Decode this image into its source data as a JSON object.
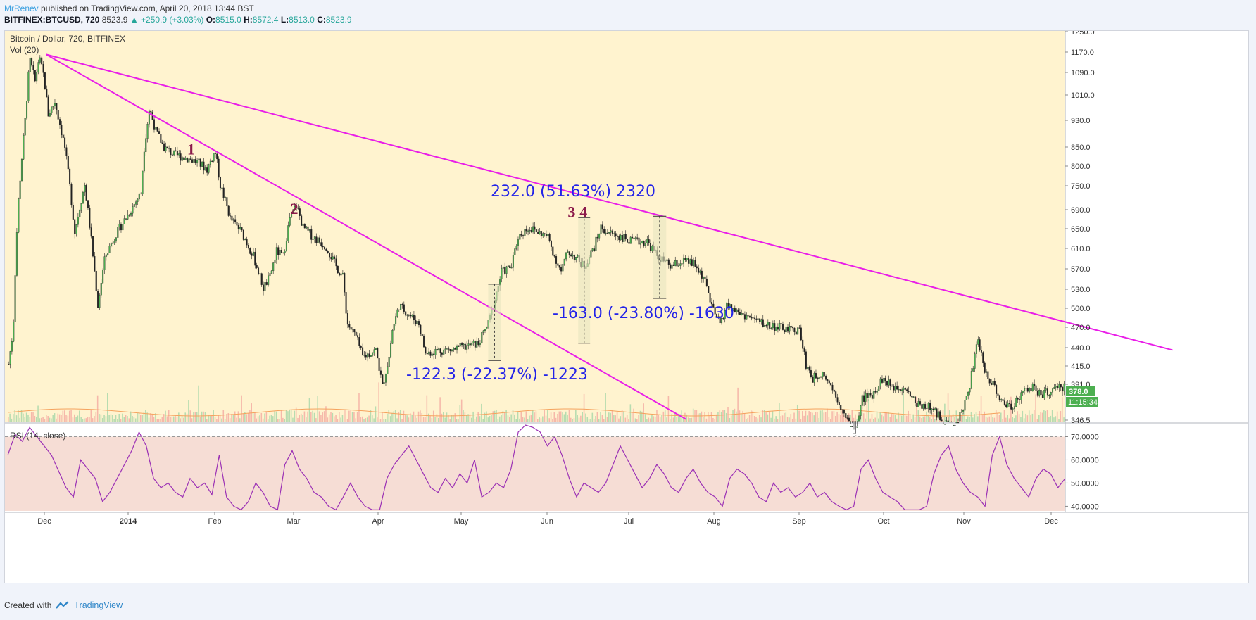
{
  "header": {
    "author": "MrRenev",
    "published": "published on TradingView.com, April 20, 2018 13:44 BST",
    "symbol": "BITFINEX:BTCUSD, 720",
    "last": "8523.9",
    "change": "▲ +250.9 (+3.03%)",
    "o_label": "O:",
    "o_value": "8515.0",
    "h_label": "H:",
    "h_value": "8572.4",
    "l_label": "L:",
    "l_value": "8513.0",
    "c_label": "C:",
    "c_value": "8523.9"
  },
  "footer": {
    "created_with": "Created with",
    "brand": "TradingView"
  },
  "colors": {
    "background": "#fff3cf",
    "rsi_band": "#f6ddd5",
    "trendline": "#e91ee8",
    "up": "#4caf50",
    "down": "#e05858",
    "rsi": "#9b30b5",
    "measure": "#2323e8",
    "wave": "#8b1a4a"
  },
  "chart_data": [
    {
      "type": "candlestick",
      "title": "Bitcoin / Dollar, 720, BITFINEX",
      "indicator": "Vol (20)",
      "x_ticks": [
        "Dec",
        "2014",
        "Feb",
        "Mar",
        "Apr",
        "May",
        "Jun",
        "Jul",
        "Aug",
        "Sep",
        "Oct",
        "Nov",
        "Dec"
      ],
      "y_ticks": [
        "1250.0",
        "1170.0",
        "1090.0",
        "1010.0",
        "930.0",
        "850.0",
        "800.0",
        "750.0",
        "690.0",
        "650.0",
        "610.0",
        "570.0",
        "530.0",
        "500.0",
        "470.0",
        "440.0",
        "415.0",
        "391.0",
        "346.5"
      ],
      "last_price_badge": "378.0",
      "countdown_badge": "11:15:34",
      "y_scale": "log",
      "close_path": [
        [
          0,
          420
        ],
        [
          0.7,
          470
        ],
        [
          1.4,
          700
        ],
        [
          2.5,
          940
        ],
        [
          3.2,
          1150
        ],
        [
          4.0,
          1070
        ],
        [
          4.6,
          1160
        ],
        [
          5.3,
          1090
        ],
        [
          6.0,
          960
        ],
        [
          7.0,
          1000
        ],
        [
          8.5,
          860
        ],
        [
          10.0,
          650
        ],
        [
          11.5,
          760
        ],
        [
          13.0,
          570
        ],
        [
          13.5,
          510
        ],
        [
          14.6,
          600
        ],
        [
          16.0,
          640
        ],
        [
          18.5,
          700
        ],
        [
          20.0,
          740
        ],
        [
          20.5,
          860
        ],
        [
          21.3,
          980
        ],
        [
          22.2,
          910
        ],
        [
          23.5,
          860
        ],
        [
          25.0,
          840
        ],
        [
          27.0,
          830
        ],
        [
          28.5,
          820
        ],
        [
          30.0,
          800
        ],
        [
          31.2,
          850
        ],
        [
          32.0,
          760
        ],
        [
          33.5,
          680
        ],
        [
          35.2,
          650
        ],
        [
          37.0,
          600
        ],
        [
          38.5,
          540
        ],
        [
          39.5,
          560
        ],
        [
          40.5,
          610
        ],
        [
          41.5,
          600
        ],
        [
          42.5,
          680
        ],
        [
          43.5,
          710
        ],
        [
          44.5,
          660
        ],
        [
          46.0,
          640
        ],
        [
          48.0,
          620
        ],
        [
          49.5,
          580
        ],
        [
          50.5,
          560
        ],
        [
          51.2,
          480
        ],
        [
          52.5,
          460
        ],
        [
          53.5,
          430
        ],
        [
          55.5,
          440
        ],
        [
          56.5,
          390
        ],
        [
          57.5,
          430
        ],
        [
          58.0,
          470
        ],
        [
          59.0,
          510
        ],
        [
          60.0,
          500
        ],
        [
          62.0,
          480
        ],
        [
          63.0,
          435
        ],
        [
          65.0,
          440
        ],
        [
          67.0,
          440
        ],
        [
          69.0,
          445
        ],
        [
          71.0,
          450
        ],
        [
          72.5,
          480
        ],
        [
          73.5,
          520
        ],
        [
          74.5,
          570
        ],
        [
          76.0,
          580
        ],
        [
          77.0,
          640
        ],
        [
          78.5,
          660
        ],
        [
          80.0,
          650
        ],
        [
          81.5,
          640
        ],
        [
          82.5,
          600
        ],
        [
          83.5,
          570
        ],
        [
          84.5,
          610
        ],
        [
          85.5,
          600
        ],
        [
          87.0,
          580
        ],
        [
          88.5,
          620
        ],
        [
          89.5,
          660
        ],
        [
          90.5,
          650
        ],
        [
          92.5,
          640
        ],
        [
          94.0,
          630
        ],
        [
          96.5,
          630
        ],
        [
          98.0,
          600
        ],
        [
          100.0,
          580
        ],
        [
          102.0,
          590
        ],
        [
          103.5,
          585
        ],
        [
          105.0,
          560
        ],
        [
          106.5,
          500
        ],
        [
          107.5,
          480
        ],
        [
          108.5,
          510
        ],
        [
          110.0,
          500
        ],
        [
          112.0,
          490
        ],
        [
          114.0,
          480
        ],
        [
          116.0,
          475
        ],
        [
          118.0,
          470
        ],
        [
          119.5,
          470
        ],
        [
          120.5,
          420
        ],
        [
          121.5,
          400
        ],
        [
          123.0,
          410
        ],
        [
          125.0,
          380
        ],
        [
          126.5,
          350
        ],
        [
          128.0,
          330
        ],
        [
          129.0,
          375
        ],
        [
          130.5,
          380
        ],
        [
          132.0,
          400
        ],
        [
          133.5,
          390
        ],
        [
          135.5,
          390
        ],
        [
          137.0,
          370
        ],
        [
          139.0,
          365
        ],
        [
          141.0,
          350
        ],
        [
          143.0,
          340
        ],
        [
          145.0,
          380
        ],
        [
          146.5,
          455
        ],
        [
          147.5,
          410
        ],
        [
          149.0,
          390
        ],
        [
          150.0,
          370
        ],
        [
          151.5,
          365
        ],
        [
          153.0,
          380
        ],
        [
          154.5,
          390
        ],
        [
          156.0,
          380
        ],
        [
          158.0,
          385
        ],
        [
          159.5,
          390
        ]
      ],
      "trendlines": [
        {
          "from": [
            5.8,
            1170
          ],
          "to": [
            102.5,
            350
          ]
        },
        {
          "from": [
            5.8,
            1170
          ],
          "to": [
            176.0,
            440
          ]
        }
      ],
      "wave_labels": [
        {
          "text": "1",
          "x": 27.7,
          "y": 840
        },
        {
          "text": "2",
          "x": 43.3,
          "y": 690
        },
        {
          "text": "3",
          "x": 85.2,
          "y": 683
        },
        {
          "text": "4",
          "x": 87.0,
          "y": 683
        }
      ],
      "measurements": [
        {
          "label": "-122.3 (-22.37%) -1223",
          "x1": 72.6,
          "x2": 74.5,
          "y_from": 547,
          "y_to": 425
        },
        {
          "label": "232.0 (51.63%) 2320",
          "x1": 86.2,
          "x2": 88.0,
          "y_from": 450,
          "y_to": 682
        },
        {
          "label": "-163.0 (-23.80%) -1630",
          "x1": 97.5,
          "x2": 99.5,
          "y_from": 685,
          "y_to": 522
        }
      ]
    },
    {
      "type": "line",
      "title": "RSI (14, close)",
      "y_ticks": [
        "70.0000",
        "60.0000",
        "50.0000",
        "40.0000"
      ],
      "values": [
        62,
        71,
        68,
        74,
        70,
        66,
        62,
        55,
        48,
        44,
        60,
        56,
        52,
        42,
        46,
        52,
        58,
        64,
        72,
        66,
        52,
        48,
        50,
        46,
        44,
        52,
        48,
        50,
        45,
        62,
        44,
        40,
        38,
        42,
        50,
        46,
        40,
        36,
        58,
        64,
        56,
        52,
        46,
        44,
        40,
        38,
        44,
        50,
        44,
        40,
        38,
        36,
        52,
        58,
        62,
        66,
        60,
        54,
        48,
        46,
        52,
        48,
        54,
        50,
        60,
        44,
        46,
        50,
        48,
        56,
        72,
        78,
        74,
        72,
        66,
        70,
        62,
        52,
        44,
        50,
        48,
        46,
        50,
        58,
        66,
        60,
        54,
        48,
        52,
        58,
        54,
        48,
        46,
        52,
        56,
        50,
        46,
        44,
        40,
        52,
        56,
        54,
        50,
        44,
        42,
        50,
        46,
        48,
        44,
        46,
        50,
        44,
        46,
        42,
        40,
        38,
        40,
        56,
        60,
        52,
        46,
        44,
        42,
        36,
        38,
        34,
        40,
        54,
        62,
        66,
        56,
        50,
        46,
        44,
        40,
        62,
        70,
        58,
        52,
        48,
        44,
        52,
        56,
        54,
        48,
        52
      ]
    }
  ]
}
